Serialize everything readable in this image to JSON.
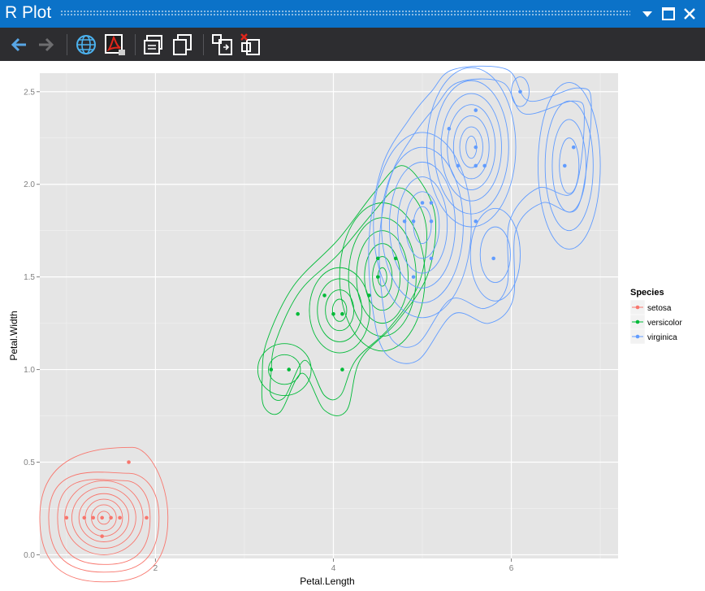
{
  "window": {
    "title": "R Plot"
  },
  "toolbar": {
    "buttons": [
      "back-icon",
      "forward-icon",
      "web-browser-icon",
      "pdf-export-icon",
      "copy-as-bitmap-icon",
      "copy-as-metafile-icon",
      "export-to-image-icon",
      "clear-all-plots-icon"
    ]
  },
  "colors": {
    "setosa": "#f8766d",
    "versicolor": "#00ba38",
    "virginica": "#619cff",
    "panel": "#e5e5e5",
    "titlebar": "#0b72c8",
    "toolbar": "#2d2d30"
  },
  "chart_data": {
    "type": "scatter",
    "overlay": "density contours",
    "xlabel": "Petal.Length",
    "ylabel": "Petal.Width",
    "xlim": [
      0.7,
      7.2
    ],
    "ylim": [
      -0.02,
      2.6
    ],
    "x_ticks": [
      2,
      4,
      6
    ],
    "y_ticks": [
      0.0,
      0.5,
      1.0,
      1.5,
      2.0,
      2.5
    ],
    "x_tick_labels": [
      "2",
      "4",
      "6"
    ],
    "y_tick_labels": [
      "0.0",
      "0.5",
      "1.0",
      "1.5",
      "2.0",
      "2.5"
    ],
    "grid": true,
    "legend": {
      "title": "Species",
      "position": "right",
      "entries": [
        "setosa",
        "versicolor",
        "virginica"
      ]
    },
    "series": [
      {
        "name": "setosa",
        "points": [
          [
            1.0,
            0.2
          ],
          [
            1.2,
            0.2
          ],
          [
            1.3,
            0.2
          ],
          [
            1.4,
            0.2
          ],
          [
            1.5,
            0.2
          ],
          [
            1.6,
            0.2
          ],
          [
            1.9,
            0.2
          ],
          [
            1.4,
            0.1
          ],
          [
            1.7,
            0.5
          ]
        ],
        "contours": [
          {
            "cx": 1.42,
            "cy": 0.2,
            "rx": 0.72,
            "ry": 0.33,
            "top": 0.58
          },
          {
            "cx": 1.42,
            "cy": 0.2,
            "rx": 0.62,
            "ry": 0.28,
            "top": 0.44
          },
          {
            "cx": 1.42,
            "cy": 0.2,
            "rx": 0.52,
            "ry": 0.24,
            "top": 0.4
          },
          {
            "cx": 1.42,
            "cy": 0.2,
            "rx": 0.44,
            "ry": 0.2
          },
          {
            "cx": 1.42,
            "cy": 0.2,
            "rx": 0.36,
            "ry": 0.165
          },
          {
            "cx": 1.42,
            "cy": 0.2,
            "rx": 0.28,
            "ry": 0.13
          },
          {
            "cx": 1.42,
            "cy": 0.2,
            "rx": 0.21,
            "ry": 0.1
          },
          {
            "cx": 1.42,
            "cy": 0.2,
            "rx": 0.14,
            "ry": 0.07
          },
          {
            "cx": 1.42,
            "cy": 0.2,
            "rx": 0.07,
            "ry": 0.035
          }
        ]
      },
      {
        "name": "versicolor",
        "points": [
          [
            3.3,
            1.0
          ],
          [
            3.5,
            1.0
          ],
          [
            4.1,
            1.0
          ],
          [
            3.6,
            1.3
          ],
          [
            3.9,
            1.4
          ],
          [
            4.0,
            1.3
          ],
          [
            4.1,
            1.3
          ],
          [
            4.4,
            1.4
          ],
          [
            4.5,
            1.5
          ],
          [
            4.5,
            1.6
          ],
          [
            4.7,
            1.6
          ]
        ],
        "contours": [
          {
            "cx": 3.45,
            "cy": 1.0,
            "rx": 0.3,
            "ry": 0.14
          },
          {
            "cx": 3.45,
            "cy": 1.0,
            "rx": 0.18,
            "ry": 0.08
          },
          {
            "cx": 4.07,
            "cy": 1.32,
            "rx": 0.34,
            "ry": 0.23
          },
          {
            "cx": 4.07,
            "cy": 1.32,
            "rx": 0.25,
            "ry": 0.17
          },
          {
            "cx": 4.07,
            "cy": 1.32,
            "rx": 0.16,
            "ry": 0.11
          },
          {
            "cx": 4.07,
            "cy": 1.32,
            "rx": 0.08,
            "ry": 0.06
          },
          {
            "cx": 4.55,
            "cy": 1.5,
            "rx": 0.48,
            "ry": 0.4
          },
          {
            "cx": 4.55,
            "cy": 1.5,
            "rx": 0.38,
            "ry": 0.32
          },
          {
            "cx": 4.55,
            "cy": 1.5,
            "rx": 0.29,
            "ry": 0.25
          },
          {
            "cx": 4.55,
            "cy": 1.5,
            "rx": 0.2,
            "ry": 0.18
          },
          {
            "cx": 4.55,
            "cy": 1.5,
            "rx": 0.11,
            "ry": 0.11
          },
          {
            "cx": 4.55,
            "cy": 1.5,
            "rx": 0.05,
            "ry": 0.05
          }
        ],
        "outer_contours": [
          [
            [
              3.2,
              0.95
            ],
            [
              3.25,
              1.15
            ],
            [
              3.55,
              1.45
            ],
            [
              4.05,
              1.7
            ],
            [
              4.45,
              1.95
            ],
            [
              4.75,
              2.1
            ],
            [
              5.0,
              2.0
            ],
            [
              5.15,
              1.8
            ],
            [
              5.05,
              1.5
            ],
            [
              4.7,
              1.25
            ],
            [
              4.3,
              1.05
            ],
            [
              4.15,
              0.78
            ],
            [
              3.9,
              0.78
            ],
            [
              3.65,
              0.98
            ],
            [
              3.4,
              0.77
            ],
            [
              3.22,
              0.8
            ]
          ],
          [
            [
              3.3,
              0.98
            ],
            [
              3.35,
              1.15
            ],
            [
              3.62,
              1.42
            ],
            [
              4.05,
              1.62
            ],
            [
              4.45,
              1.85
            ],
            [
              4.72,
              1.98
            ],
            [
              4.95,
              1.9
            ],
            [
              5.05,
              1.72
            ],
            [
              4.95,
              1.45
            ],
            [
              4.62,
              1.22
            ],
            [
              4.25,
              1.05
            ],
            [
              4.08,
              0.86
            ],
            [
              3.9,
              0.86
            ],
            [
              3.68,
              1.05
            ],
            [
              3.45,
              0.85
            ],
            [
              3.3,
              0.86
            ]
          ]
        ]
      },
      {
        "name": "virginica",
        "points": [
          [
            4.8,
            1.8
          ],
          [
            4.9,
            1.8
          ],
          [
            5.1,
            1.8
          ],
          [
            5.6,
            1.8
          ],
          [
            5.0,
            1.9
          ],
          [
            5.1,
            1.9
          ],
          [
            4.9,
            1.5
          ],
          [
            5.1,
            1.6
          ],
          [
            5.8,
            1.6
          ],
          [
            5.3,
            2.3
          ],
          [
            5.4,
            2.1
          ],
          [
            5.6,
            2.1
          ],
          [
            5.7,
            2.1
          ],
          [
            5.6,
            2.2
          ],
          [
            5.6,
            2.4
          ],
          [
            6.1,
            2.5
          ],
          [
            6.6,
            2.1
          ],
          [
            6.7,
            2.2
          ]
        ],
        "contours": [
          {
            "cx": 5.55,
            "cy": 2.2,
            "rx": 0.5,
            "ry": 0.43
          },
          {
            "cx": 5.55,
            "cy": 2.2,
            "rx": 0.42,
            "ry": 0.36
          },
          {
            "cx": 5.55,
            "cy": 2.2,
            "rx": 0.34,
            "ry": 0.29
          },
          {
            "cx": 5.55,
            "cy": 2.2,
            "rx": 0.27,
            "ry": 0.23
          },
          {
            "cx": 5.55,
            "cy": 2.2,
            "rx": 0.2,
            "ry": 0.17
          },
          {
            "cx": 5.55,
            "cy": 2.2,
            "rx": 0.13,
            "ry": 0.11
          },
          {
            "cx": 5.55,
            "cy": 2.2,
            "rx": 0.06,
            "ry": 0.06
          },
          {
            "cx": 5.0,
            "cy": 1.78,
            "rx": 0.55,
            "ry": 0.5
          },
          {
            "cx": 5.0,
            "cy": 1.78,
            "rx": 0.46,
            "ry": 0.42
          },
          {
            "cx": 5.0,
            "cy": 1.78,
            "rx": 0.37,
            "ry": 0.34
          },
          {
            "cx": 5.0,
            "cy": 1.78,
            "rx": 0.28,
            "ry": 0.26
          },
          {
            "cx": 5.0,
            "cy": 1.78,
            "rx": 0.19,
            "ry": 0.18
          },
          {
            "cx": 5.0,
            "cy": 1.78,
            "rx": 0.1,
            "ry": 0.1
          },
          {
            "cx": 5.82,
            "cy": 1.62,
            "rx": 0.28,
            "ry": 0.25
          },
          {
            "cx": 5.82,
            "cy": 1.62,
            "rx": 0.17,
            "ry": 0.15
          },
          {
            "cx": 6.65,
            "cy": 2.1,
            "rx": 0.35,
            "ry": 0.45
          },
          {
            "cx": 6.65,
            "cy": 2.1,
            "rx": 0.27,
            "ry": 0.35
          },
          {
            "cx": 6.65,
            "cy": 2.1,
            "rx": 0.19,
            "ry": 0.25
          },
          {
            "cx": 6.65,
            "cy": 2.1,
            "rx": 0.11,
            "ry": 0.15
          },
          {
            "cx": 6.1,
            "cy": 2.5,
            "rx": 0.1,
            "ry": 0.08
          }
        ],
        "outer_contours": [
          [
            [
              4.45,
              1.3
            ],
            [
              4.4,
              1.7
            ],
            [
              4.55,
              2.1
            ],
            [
              4.85,
              2.35
            ],
            [
              5.1,
              2.5
            ],
            [
              5.35,
              2.62
            ],
            [
              5.95,
              2.62
            ],
            [
              6.2,
              2.45
            ],
            [
              6.75,
              2.52
            ],
            [
              6.9,
              2.42
            ],
            [
              6.75,
              1.88
            ],
            [
              6.35,
              1.9
            ],
            [
              6.05,
              1.75
            ],
            [
              6.02,
              1.38
            ],
            [
              5.75,
              1.25
            ],
            [
              5.35,
              1.3
            ],
            [
              4.95,
              1.05
            ],
            [
              4.6,
              1.08
            ]
          ],
          [
            [
              4.55,
              1.38
            ],
            [
              4.52,
              1.72
            ],
            [
              4.65,
              2.05
            ],
            [
              4.92,
              2.28
            ],
            [
              5.15,
              2.42
            ],
            [
              5.4,
              2.55
            ],
            [
              5.9,
              2.55
            ],
            [
              6.15,
              2.38
            ],
            [
              6.7,
              2.45
            ],
            [
              6.82,
              2.36
            ],
            [
              6.7,
              1.96
            ],
            [
              6.3,
              1.98
            ],
            [
              5.98,
              1.8
            ],
            [
              5.95,
              1.45
            ],
            [
              5.7,
              1.33
            ],
            [
              5.32,
              1.38
            ],
            [
              4.95,
              1.14
            ],
            [
              4.66,
              1.16
            ]
          ]
        ]
      }
    ]
  }
}
